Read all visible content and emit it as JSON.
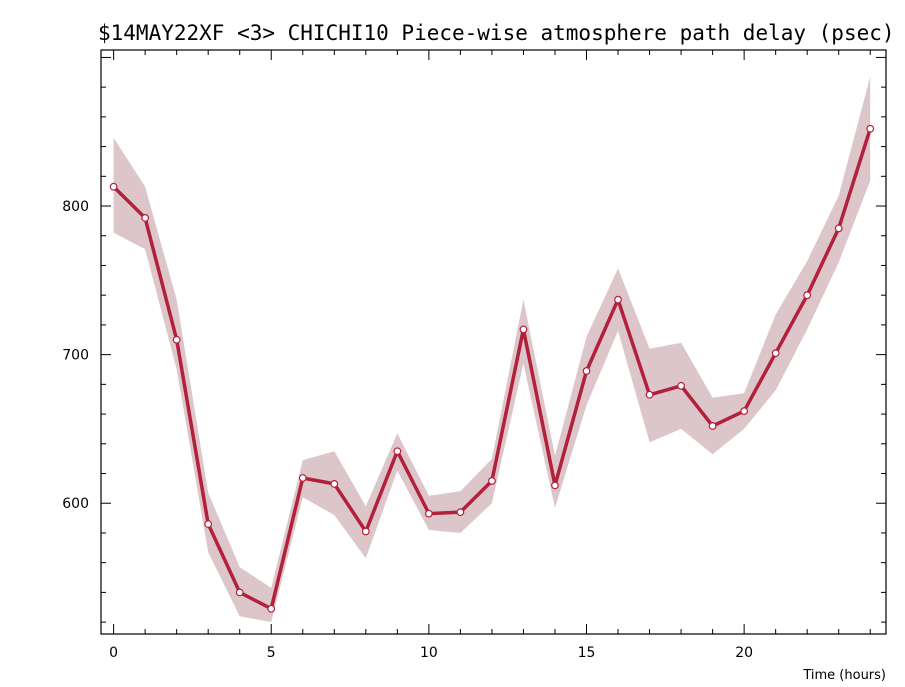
{
  "chart_data": {
    "type": "line",
    "title": "$14MAY22XF <3>  CHICHI10  Piece-wise atmosphere path delay (psec)",
    "xlabel": "Time (hours)",
    "ylabel": "",
    "xlim": [
      -0.4,
      24.5
    ],
    "ylim": [
      512,
      905
    ],
    "x_ticks": [
      0,
      5,
      10,
      15,
      20
    ],
    "y_ticks": [
      600,
      700,
      800
    ],
    "grid": false,
    "colors": {
      "line": "#b3203c",
      "band": "#dcc6ca",
      "marker_fill": "#ffffff",
      "marker_stroke": "#b3203c",
      "axis": "#000000"
    },
    "series": [
      {
        "x": [
          0,
          1,
          2,
          3,
          4,
          5,
          6,
          7,
          8,
          9,
          10,
          11,
          12,
          13,
          14,
          15,
          16,
          17,
          18,
          19,
          20,
          21,
          22,
          23,
          24
        ],
        "values": [
          813,
          792,
          710,
          586,
          540,
          529,
          617,
          613,
          581,
          635,
          593,
          594,
          615,
          717,
          612,
          689,
          737,
          673,
          679,
          652,
          662,
          701,
          740,
          785,
          852
        ],
        "upper": [
          846,
          813,
          737,
          607,
          557,
          543,
          629,
          635,
          598,
          647,
          605,
          608,
          630,
          737,
          632,
          712,
          758,
          704,
          708,
          671,
          674,
          727,
          763,
          807,
          887
        ],
        "lower": [
          782,
          771,
          690,
          567,
          524,
          520,
          604,
          592,
          563,
          622,
          582,
          580,
          600,
          694,
          597,
          666,
          716,
          641,
          650,
          633,
          650,
          676,
          717,
          762,
          817
        ]
      }
    ]
  }
}
